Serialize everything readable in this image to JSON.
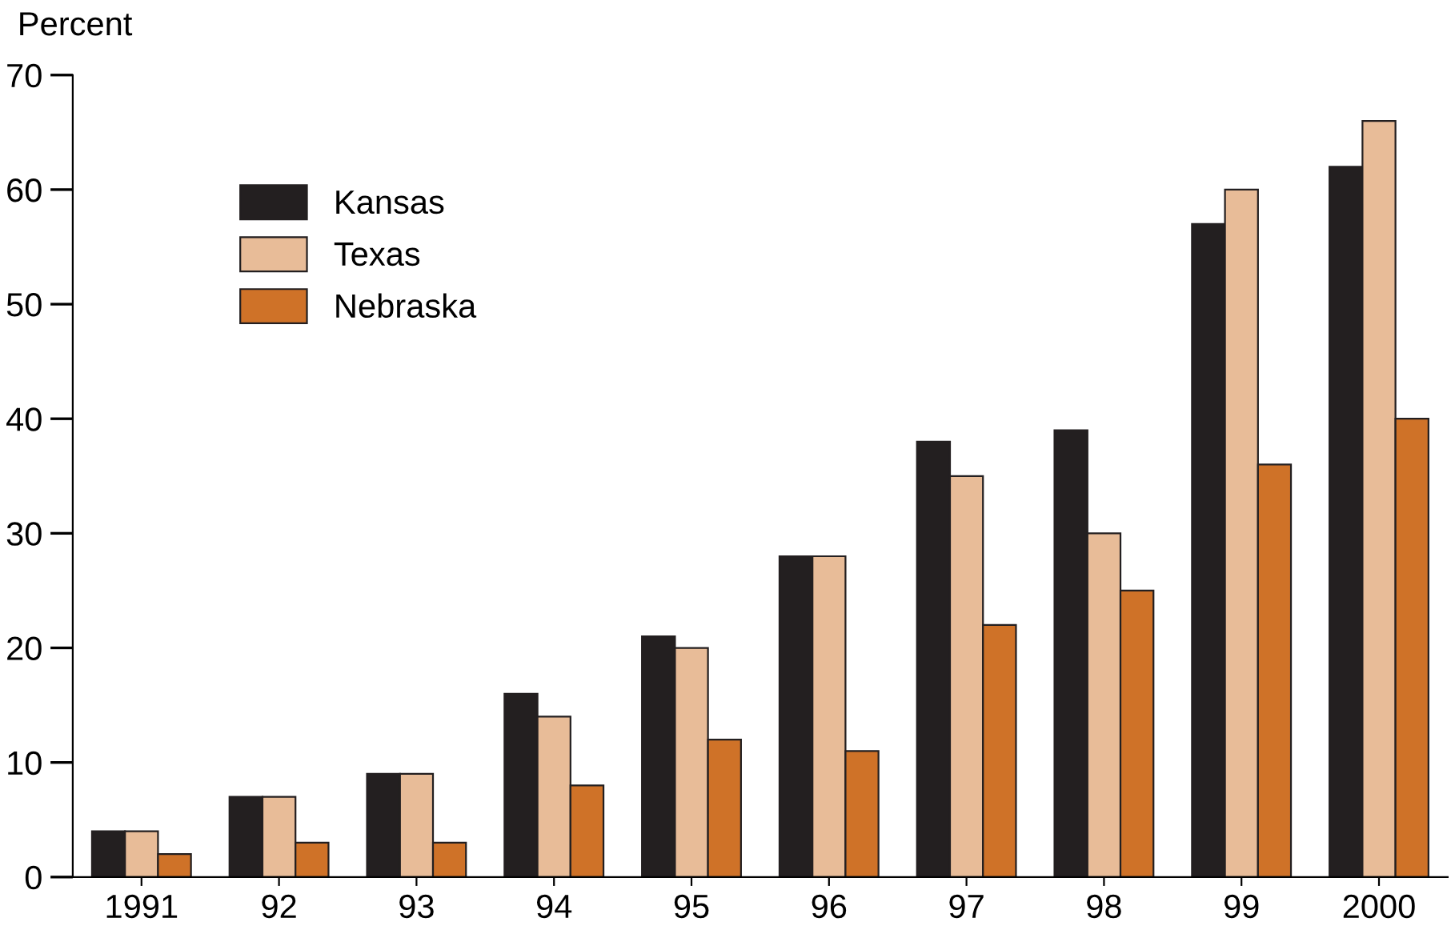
{
  "chart_data": {
    "type": "bar",
    "ylabel": "Percent",
    "categories": [
      "1991",
      "92",
      "93",
      "94",
      "95",
      "96",
      "97",
      "98",
      "99",
      "2000"
    ],
    "series": [
      {
        "name": "Kansas",
        "color": "#231f20",
        "values": [
          4,
          7,
          9,
          16,
          21,
          28,
          38,
          39,
          57,
          62
        ]
      },
      {
        "name": "Texas",
        "color": "#e8bc98",
        "values": [
          4,
          7,
          9,
          14,
          20,
          28,
          35,
          30,
          60,
          66
        ]
      },
      {
        "name": "Nebraska",
        "color": "#cf7228",
        "values": [
          2,
          3,
          3,
          8,
          12,
          11,
          22,
          25,
          36,
          40
        ]
      }
    ],
    "ylim": [
      0,
      70
    ],
    "yticks": [
      0,
      10,
      20,
      30,
      40,
      50,
      60,
      70
    ],
    "grid": false,
    "legend": "top left"
  }
}
